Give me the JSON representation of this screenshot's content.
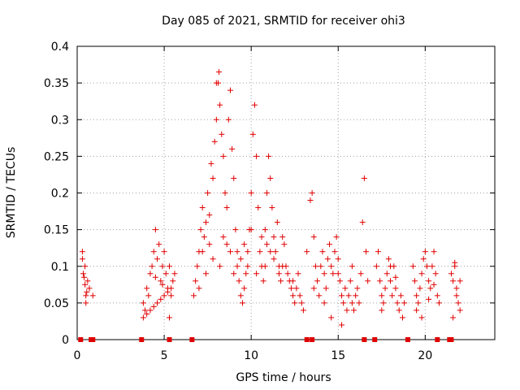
{
  "chart_data": {
    "type": "scatter",
    "title": "Day 085 of 2021, SRMTID for receiver ohi3",
    "xlabel": "GPS time / hours",
    "ylabel": "SRMTID / TECUs",
    "xlim": [
      0,
      24
    ],
    "ylim": [
      0,
      0.4
    ],
    "xticks": [
      0,
      5,
      10,
      15,
      20
    ],
    "xtick_labels": [
      "0",
      "5",
      "10",
      "15",
      "20"
    ],
    "yticks": [
      0,
      0.05,
      0.1,
      0.15,
      0.2,
      0.25,
      0.3,
      0.35,
      0.4
    ],
    "ytick_labels": [
      "0",
      "0.05",
      "0.1",
      "0.15",
      "0.2",
      "0.25",
      "0.3",
      "0.35",
      "0.4"
    ],
    "grid": true,
    "marker": "+",
    "color": "#e00000",
    "zero_markers_x": [
      0.2,
      0.8,
      0.9,
      3.7,
      5.3,
      6.6,
      13.2,
      13.5,
      16.5,
      17.1,
      19.0,
      20.7,
      21.4,
      21.5
    ],
    "series": [
      {
        "name": "SRMTID",
        "points": [
          [
            0.3,
            0.11
          ],
          [
            0.35,
            0.09
          ],
          [
            0.4,
            0.085
          ],
          [
            0.45,
            0.075
          ],
          [
            0.5,
            0.06
          ],
          [
            0.55,
            0.065
          ],
          [
            0.3,
            0.12
          ],
          [
            0.45,
            0.1
          ],
          [
            0.6,
            0.08
          ],
          [
            0.5,
            0.05
          ],
          [
            0.9,
            0.06
          ],
          [
            0.7,
            0.07
          ],
          [
            3.8,
            0.05
          ],
          [
            3.9,
            0.04
          ],
          [
            4.0,
            0.07
          ],
          [
            4.1,
            0.06
          ],
          [
            4.2,
            0.09
          ],
          [
            4.3,
            0.1
          ],
          [
            4.4,
            0.12
          ],
          [
            4.5,
            0.15
          ],
          [
            4.6,
            0.11
          ],
          [
            4.7,
            0.13
          ],
          [
            4.8,
            0.08
          ],
          [
            4.9,
            0.1
          ],
          [
            5.0,
            0.12
          ],
          [
            5.1,
            0.09
          ],
          [
            5.2,
            0.07
          ],
          [
            5.3,
            0.1
          ],
          [
            5.4,
            0.06
          ],
          [
            5.5,
            0.08
          ],
          [
            5.6,
            0.09
          ],
          [
            3.8,
            0.03
          ],
          [
            4.0,
            0.035
          ],
          [
            4.2,
            0.04
          ],
          [
            4.4,
            0.045
          ],
          [
            4.6,
            0.05
          ],
          [
            4.8,
            0.055
          ],
          [
            5.0,
            0.06
          ],
          [
            5.2,
            0.065
          ],
          [
            5.4,
            0.07
          ],
          [
            5.3,
            0.03
          ],
          [
            4.5,
            0.085
          ],
          [
            4.9,
            0.075
          ],
          [
            6.7,
            0.06
          ],
          [
            6.8,
            0.08
          ],
          [
            6.9,
            0.1
          ],
          [
            7.0,
            0.12
          ],
          [
            7.1,
            0.15
          ],
          [
            7.2,
            0.18
          ],
          [
            7.3,
            0.14
          ],
          [
            7.4,
            0.16
          ],
          [
            7.5,
            0.2
          ],
          [
            7.6,
            0.17
          ],
          [
            7.7,
            0.24
          ],
          [
            7.8,
            0.22
          ],
          [
            7.9,
            0.27
          ],
          [
            8.0,
            0.3
          ],
          [
            8.1,
            0.35
          ],
          [
            8.2,
            0.32
          ],
          [
            8.3,
            0.28
          ],
          [
            8.4,
            0.25
          ],
          [
            8.5,
            0.2
          ],
          [
            8.6,
            0.18
          ],
          [
            8.7,
            0.3
          ],
          [
            8.8,
            0.34
          ],
          [
            8.9,
            0.26
          ],
          [
            9.0,
            0.22
          ],
          [
            9.1,
            0.15
          ],
          [
            9.2,
            0.1
          ],
          [
            9.3,
            0.08
          ],
          [
            9.4,
            0.06
          ],
          [
            9.5,
            0.05
          ],
          [
            9.6,
            0.07
          ],
          [
            9.7,
            0.09
          ],
          [
            9.8,
            0.12
          ],
          [
            9.9,
            0.15
          ],
          [
            10.0,
            0.2
          ],
          [
            10.1,
            0.28
          ],
          [
            10.2,
            0.32
          ],
          [
            10.3,
            0.25
          ],
          [
            10.4,
            0.18
          ],
          [
            10.5,
            0.12
          ],
          [
            10.6,
            0.1
          ],
          [
            10.7,
            0.08
          ],
          [
            10.8,
            0.15
          ],
          [
            10.9,
            0.2
          ],
          [
            11.0,
            0.25
          ],
          [
            11.1,
            0.22
          ],
          [
            11.2,
            0.18
          ],
          [
            11.3,
            0.14
          ],
          [
            11.4,
            0.12
          ],
          [
            11.5,
            0.16
          ],
          [
            11.6,
            0.1
          ],
          [
            11.7,
            0.08
          ],
          [
            11.8,
            0.14
          ],
          [
            11.9,
            0.13
          ],
          [
            12.0,
            0.1
          ],
          [
            12.1,
            0.09
          ],
          [
            12.2,
            0.08
          ],
          [
            12.3,
            0.07
          ],
          [
            12.4,
            0.06
          ],
          [
            12.5,
            0.05
          ],
          [
            12.6,
            0.07
          ],
          [
            12.7,
            0.09
          ],
          [
            12.8,
            0.06
          ],
          [
            12.9,
            0.05
          ],
          [
            13.0,
            0.04
          ],
          [
            8.15,
            0.365
          ],
          [
            8.0,
            0.35
          ],
          [
            7.2,
            0.12
          ],
          [
            7.6,
            0.13
          ],
          [
            8.4,
            0.14
          ],
          [
            8.8,
            0.12
          ],
          [
            9.4,
            0.11
          ],
          [
            9.8,
            0.1
          ],
          [
            10.3,
            0.09
          ],
          [
            10.8,
            0.1
          ],
          [
            11.3,
            0.11
          ],
          [
            11.8,
            0.1
          ],
          [
            7.4,
            0.09
          ],
          [
            8.2,
            0.1
          ],
          [
            9.0,
            0.09
          ],
          [
            9.6,
            0.13
          ],
          [
            10.6,
            0.14
          ],
          [
            11.1,
            0.12
          ],
          [
            12.4,
            0.08
          ],
          [
            7.0,
            0.07
          ],
          [
            7.8,
            0.11
          ],
          [
            8.6,
            0.13
          ],
          [
            9.2,
            0.12
          ],
          [
            10.0,
            0.15
          ],
          [
            10.9,
            0.13
          ],
          [
            11.6,
            0.09
          ],
          [
            13.2,
            0.12
          ],
          [
            13.4,
            0.19
          ],
          [
            13.5,
            0.2
          ],
          [
            13.6,
            0.14
          ],
          [
            13.7,
            0.1
          ],
          [
            13.8,
            0.08
          ],
          [
            13.9,
            0.06
          ],
          [
            14.0,
            0.1
          ],
          [
            14.1,
            0.12
          ],
          [
            14.2,
            0.09
          ],
          [
            14.3,
            0.07
          ],
          [
            14.4,
            0.11
          ],
          [
            14.5,
            0.13
          ],
          [
            14.6,
            0.1
          ],
          [
            14.7,
            0.09
          ],
          [
            14.8,
            0.12
          ],
          [
            14.9,
            0.14
          ],
          [
            15.0,
            0.11
          ],
          [
            15.1,
            0.08
          ],
          [
            15.2,
            0.06
          ],
          [
            15.3,
            0.05
          ],
          [
            15.4,
            0.07
          ],
          [
            15.5,
            0.04
          ],
          [
            15.6,
            0.06
          ],
          [
            15.7,
            0.08
          ],
          [
            15.8,
            0.05
          ],
          [
            15.9,
            0.04
          ],
          [
            16.0,
            0.06
          ],
          [
            16.1,
            0.07
          ],
          [
            16.2,
            0.05
          ],
          [
            16.3,
            0.09
          ],
          [
            16.4,
            0.16
          ],
          [
            16.5,
            0.22
          ],
          [
            16.6,
            0.12
          ],
          [
            16.7,
            0.08
          ],
          [
            15.2,
            0.02
          ],
          [
            14.6,
            0.03
          ],
          [
            13.6,
            0.07
          ],
          [
            14.2,
            0.05
          ],
          [
            15.0,
            0.09
          ],
          [
            15.8,
            0.1
          ],
          [
            17.2,
            0.1
          ],
          [
            17.3,
            0.12
          ],
          [
            17.4,
            0.08
          ],
          [
            17.5,
            0.06
          ],
          [
            17.6,
            0.05
          ],
          [
            17.7,
            0.07
          ],
          [
            17.8,
            0.09
          ],
          [
            17.9,
            0.11
          ],
          [
            18.0,
            0.08
          ],
          [
            18.1,
            0.06
          ],
          [
            18.2,
            0.1
          ],
          [
            18.3,
            0.07
          ],
          [
            18.4,
            0.05
          ],
          [
            18.5,
            0.04
          ],
          [
            18.6,
            0.06
          ],
          [
            18.7,
            0.03
          ],
          [
            18.8,
            0.05
          ],
          [
            17.5,
            0.04
          ],
          [
            18.0,
            0.1
          ],
          [
            18.3,
            0.085
          ],
          [
            19.3,
            0.1
          ],
          [
            19.4,
            0.08
          ],
          [
            19.5,
            0.06
          ],
          [
            19.6,
            0.05
          ],
          [
            19.7,
            0.07
          ],
          [
            19.8,
            0.09
          ],
          [
            19.9,
            0.11
          ],
          [
            20.0,
            0.12
          ],
          [
            20.1,
            0.1
          ],
          [
            20.2,
            0.08
          ],
          [
            20.3,
            0.07
          ],
          [
            20.4,
            0.1
          ],
          [
            20.5,
            0.12
          ],
          [
            20.6,
            0.09
          ],
          [
            20.7,
            0.06
          ],
          [
            20.8,
            0.05
          ],
          [
            19.5,
            0.04
          ],
          [
            19.8,
            0.03
          ],
          [
            20.2,
            0.055
          ],
          [
            20.5,
            0.075
          ],
          [
            21.5,
            0.09
          ],
          [
            21.6,
            0.08
          ],
          [
            21.7,
            0.1
          ],
          [
            21.8,
            0.07
          ],
          [
            21.9,
            0.05
          ],
          [
            22.0,
            0.04
          ],
          [
            21.6,
            0.03
          ],
          [
            21.8,
            0.06
          ],
          [
            22.0,
            0.08
          ],
          [
            21.7,
            0.105
          ]
        ]
      }
    ]
  }
}
